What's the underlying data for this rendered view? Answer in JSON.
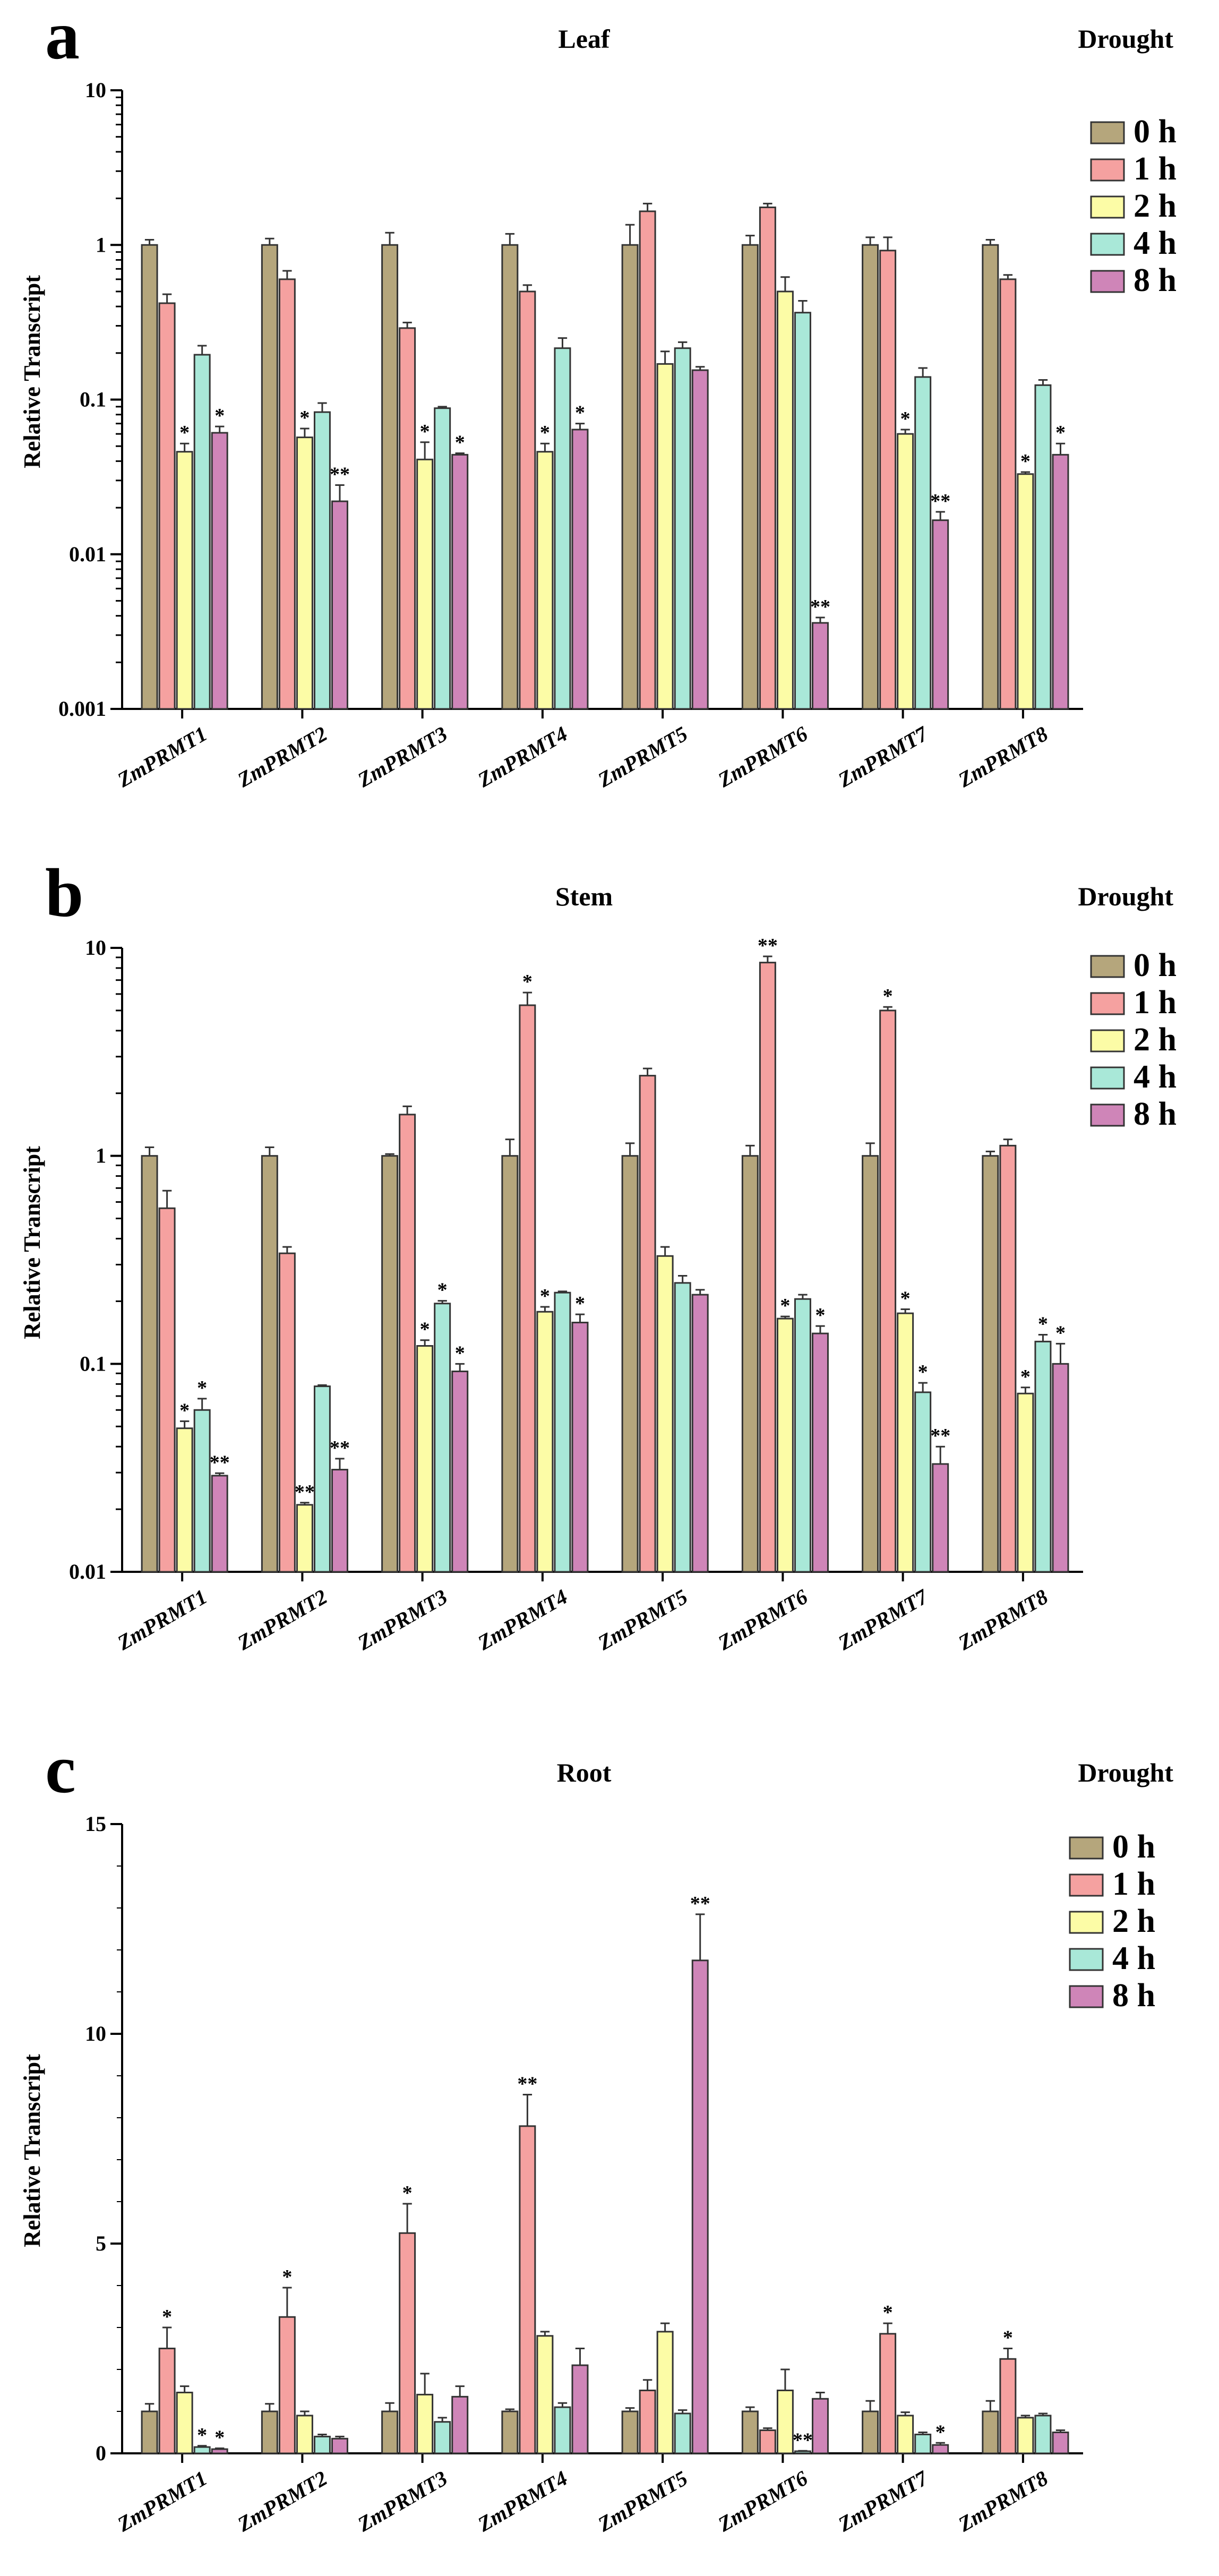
{
  "colors": {
    "0 h": "#B5A67C",
    "1 h": "#F5A1A0",
    "2 h": "#FCFCA6",
    "4 h": "#A9E8D8",
    "8 h": "#CF85B8",
    "outline": "#333333"
  },
  "chart_data": [
    {
      "panel": "a",
      "type": "bar",
      "title": "Leaf",
      "condition": "Drought",
      "ylabel": "Relative Transcript",
      "xlabel": "",
      "yscale": "log",
      "ylim": [
        0.001,
        10
      ],
      "yticks": [
        0.001,
        0.01,
        0.1,
        1,
        10
      ],
      "ytick_labels": [
        "0.001",
        "0.01",
        "0.1",
        "1",
        "10"
      ],
      "legend": [
        "0 h",
        "1 h",
        "2 h",
        "4 h",
        "8 h"
      ],
      "legend_position": "top-right",
      "categories": [
        "ZmPRMT1",
        "ZmPRMT2",
        "ZmPRMT3",
        "ZmPRMT4",
        "ZmPRMT5",
        "ZmPRMT6",
        "ZmPRMT7",
        "ZmPRMT8"
      ],
      "series": [
        {
          "name": "0 h",
          "values": [
            1,
            1,
            1,
            1,
            1,
            1,
            1,
            1
          ],
          "errors": [
            0.08,
            0.1,
            0.2,
            0.18,
            0.35,
            0.15,
            0.12,
            0.08
          ],
          "sig": [
            "",
            "",
            "",
            "",
            "",
            "",
            "",
            ""
          ]
        },
        {
          "name": "1 h",
          "values": [
            0.42,
            0.6,
            0.29,
            0.5,
            1.65,
            1.75,
            0.92,
            0.6
          ],
          "errors": [
            0.06,
            0.08,
            0.025,
            0.05,
            0.2,
            0.1,
            0.2,
            0.04
          ],
          "sig": [
            "",
            "",
            "",
            "",
            "",
            "",
            "",
            ""
          ]
        },
        {
          "name": "2 h",
          "values": [
            0.046,
            0.057,
            0.041,
            0.046,
            0.17,
            0.5,
            0.06,
            0.033
          ],
          "errors": [
            0.006,
            0.008,
            0.012,
            0.006,
            0.035,
            0.12,
            0.004,
            0.001
          ],
          "sig": [
            "*",
            "*",
            "*",
            "*",
            "",
            "",
            "*",
            "*"
          ]
        },
        {
          "name": "4 h",
          "values": [
            0.195,
            0.083,
            0.088,
            0.215,
            0.215,
            0.365,
            0.14,
            0.124
          ],
          "errors": [
            0.028,
            0.012,
            0.002,
            0.035,
            0.02,
            0.07,
            0.02,
            0.01
          ],
          "sig": [
            "",
            "",
            "",
            "",
            "",
            "",
            "",
            ""
          ]
        },
        {
          "name": "8 h",
          "values": [
            0.061,
            0.022,
            0.044,
            0.064,
            0.155,
            0.0036,
            0.0166,
            0.044
          ],
          "errors": [
            0.006,
            0.006,
            0.001,
            0.006,
            0.008,
            0.0003,
            0.0022,
            0.008
          ],
          "sig": [
            "*",
            "**",
            "*",
            "*",
            "",
            "**",
            "**",
            "*"
          ]
        }
      ]
    },
    {
      "panel": "b",
      "type": "bar",
      "title": "Stem",
      "condition": "Drought",
      "ylabel": "Relative Transcript",
      "xlabel": "",
      "yscale": "log",
      "ylim": [
        0.01,
        10
      ],
      "yticks": [
        0.01,
        0.1,
        1,
        10
      ],
      "ytick_labels": [
        "0.01",
        "0.1",
        "1",
        "10"
      ],
      "legend": [
        "0 h",
        "1 h",
        "2 h",
        "4 h",
        "8 h"
      ],
      "legend_position": "top-right",
      "categories": [
        "ZmPRMT1",
        "ZmPRMT2",
        "ZmPRMT3",
        "ZmPRMT4",
        "ZmPRMT5",
        "ZmPRMT6",
        "ZmPRMT7",
        "ZmPRMT8"
      ],
      "series": [
        {
          "name": "0 h",
          "values": [
            1,
            1,
            1,
            1,
            1,
            1,
            1,
            1
          ],
          "errors": [
            0.1,
            0.1,
            0.02,
            0.2,
            0.15,
            0.12,
            0.15,
            0.05
          ],
          "sig": [
            "",
            "",
            "",
            "",
            "",
            "",
            "",
            ""
          ]
        },
        {
          "name": "1 h",
          "values": [
            0.56,
            0.34,
            1.58,
            5.3,
            2.43,
            8.5,
            5.0,
            1.12
          ],
          "errors": [
            0.12,
            0.025,
            0.15,
            0.8,
            0.2,
            0.6,
            0.2,
            0.08
          ],
          "sig": [
            "",
            "",
            "",
            "*",
            "",
            "**",
            "*",
            ""
          ]
        },
        {
          "name": "2 h",
          "values": [
            0.049,
            0.021,
            0.122,
            0.178,
            0.33,
            0.165,
            0.175,
            0.072
          ],
          "errors": [
            0.004,
            0.0005,
            0.008,
            0.01,
            0.035,
            0.004,
            0.008,
            0.005
          ],
          "sig": [
            "*",
            "**",
            "*",
            "*",
            "",
            "*",
            "*",
            "*"
          ]
        },
        {
          "name": "4 h",
          "values": [
            0.06,
            0.078,
            0.195,
            0.22,
            0.245,
            0.205,
            0.073,
            0.128
          ],
          "errors": [
            0.008,
            0.001,
            0.006,
            0.003,
            0.02,
            0.01,
            0.008,
            0.01
          ],
          "sig": [
            "*",
            "",
            "*",
            "",
            "",
            "",
            "*",
            "*"
          ]
        },
        {
          "name": "8 h",
          "values": [
            0.029,
            0.031,
            0.092,
            0.158,
            0.215,
            0.14,
            0.033,
            0.1
          ],
          "errors": [
            0.0008,
            0.004,
            0.008,
            0.015,
            0.012,
            0.012,
            0.007,
            0.025
          ],
          "sig": [
            "**",
            "**",
            "*",
            "*",
            "",
            "*",
            "**",
            "*"
          ]
        }
      ]
    },
    {
      "panel": "c",
      "type": "bar",
      "title": "Root",
      "condition": "Drought",
      "ylabel": "Relative Transcript",
      "xlabel": "",
      "yscale": "linear",
      "ylim": [
        0,
        15
      ],
      "yticks": [
        0,
        5,
        10,
        15
      ],
      "ytick_labels": [
        "0",
        "5",
        "10",
        "15"
      ],
      "legend": [
        "0 h",
        "1 h",
        "2 h",
        "4 h",
        "8 h"
      ],
      "legend_position": "top-right",
      "categories": [
        "ZmPRMT1",
        "ZmPRMT2",
        "ZmPRMT3",
        "ZmPRMT4",
        "ZmPRMT5",
        "ZmPRMT6",
        "ZmPRMT7",
        "ZmPRMT8"
      ],
      "series": [
        {
          "name": "0 h",
          "values": [
            1,
            1,
            1,
            1,
            1,
            1,
            1,
            1
          ],
          "errors": [
            0.18,
            0.18,
            0.2,
            0.05,
            0.08,
            0.1,
            0.25,
            0.25
          ],
          "sig": [
            "",
            "",
            "",
            "",
            "",
            "",
            "",
            ""
          ]
        },
        {
          "name": "1 h",
          "values": [
            2.5,
            3.25,
            5.25,
            7.8,
            1.5,
            0.55,
            2.85,
            2.25
          ],
          "errors": [
            0.5,
            0.7,
            0.7,
            0.75,
            0.25,
            0.05,
            0.25,
            0.25
          ],
          "sig": [
            "*",
            "*",
            "*",
            "**",
            "",
            "",
            "*",
            "*"
          ]
        },
        {
          "name": "2 h",
          "values": [
            1.45,
            0.9,
            1.4,
            2.8,
            2.9,
            1.5,
            0.9,
            0.85
          ],
          "errors": [
            0.15,
            0.1,
            0.5,
            0.1,
            0.2,
            0.5,
            0.08,
            0.05
          ],
          "sig": [
            "",
            "",
            "",
            "",
            "",
            "",
            "",
            ""
          ]
        },
        {
          "name": "4 h",
          "values": [
            0.15,
            0.4,
            0.75,
            1.1,
            0.95,
            0.05,
            0.45,
            0.9
          ],
          "errors": [
            0.03,
            0.05,
            0.1,
            0.1,
            0.08,
            0.01,
            0.05,
            0.05
          ],
          "sig": [
            "*",
            "",
            "",
            "",
            "",
            "**",
            "",
            ""
          ]
        },
        {
          "name": "8 h",
          "values": [
            0.1,
            0.35,
            1.35,
            2.1,
            11.75,
            1.3,
            0.2,
            0.5
          ],
          "errors": [
            0.02,
            0.05,
            0.25,
            0.4,
            1.1,
            0.15,
            0.05,
            0.05
          ],
          "sig": [
            "*",
            "",
            "",
            "",
            "**",
            "",
            "*",
            ""
          ]
        }
      ]
    }
  ]
}
